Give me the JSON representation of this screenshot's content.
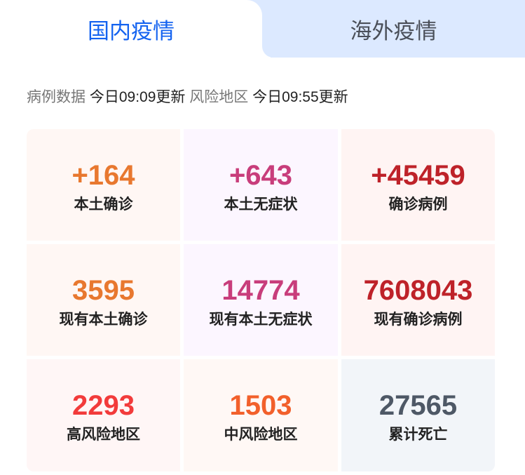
{
  "tabs": [
    {
      "label": "国内疫情",
      "active": true
    },
    {
      "label": "海外疫情",
      "active": false
    }
  ],
  "update": {
    "case_label": "病例数据",
    "case_time": "今日09:09更新",
    "risk_label": "风险地区",
    "risk_time": "今日09:55更新"
  },
  "stats": [
    {
      "value": "+164",
      "label": "本土确诊",
      "color": "#e8782f",
      "bg": "#fff7f4"
    },
    {
      "value": "+643",
      "label": "本土无症状",
      "color": "#c83d7b",
      "bg": "#fcf6ff"
    },
    {
      "value": "+45459",
      "label": "确诊病例",
      "color": "#be2229",
      "bg": "#fff4f3"
    },
    {
      "value": "3595",
      "label": "现有本土确诊",
      "color": "#e8782f",
      "bg": "#fff7f4"
    },
    {
      "value": "14774",
      "label": "现有本土无症状",
      "color": "#c83d7b",
      "bg": "#fcf6ff"
    },
    {
      "value": "7608043",
      "label": "现有确诊病例",
      "color": "#be2229",
      "bg": "#fff4f3"
    },
    {
      "value": "2293",
      "label": "高风险地区",
      "color": "#f23b3b",
      "bg": "#fff6f6"
    },
    {
      "value": "1503",
      "label": "中风险地区",
      "color": "#f2602b",
      "bg": "#fff8f5"
    },
    {
      "value": "27565",
      "label": "累计死亡",
      "color": "#4e5866",
      "bg": "#f2f5f9"
    }
  ]
}
